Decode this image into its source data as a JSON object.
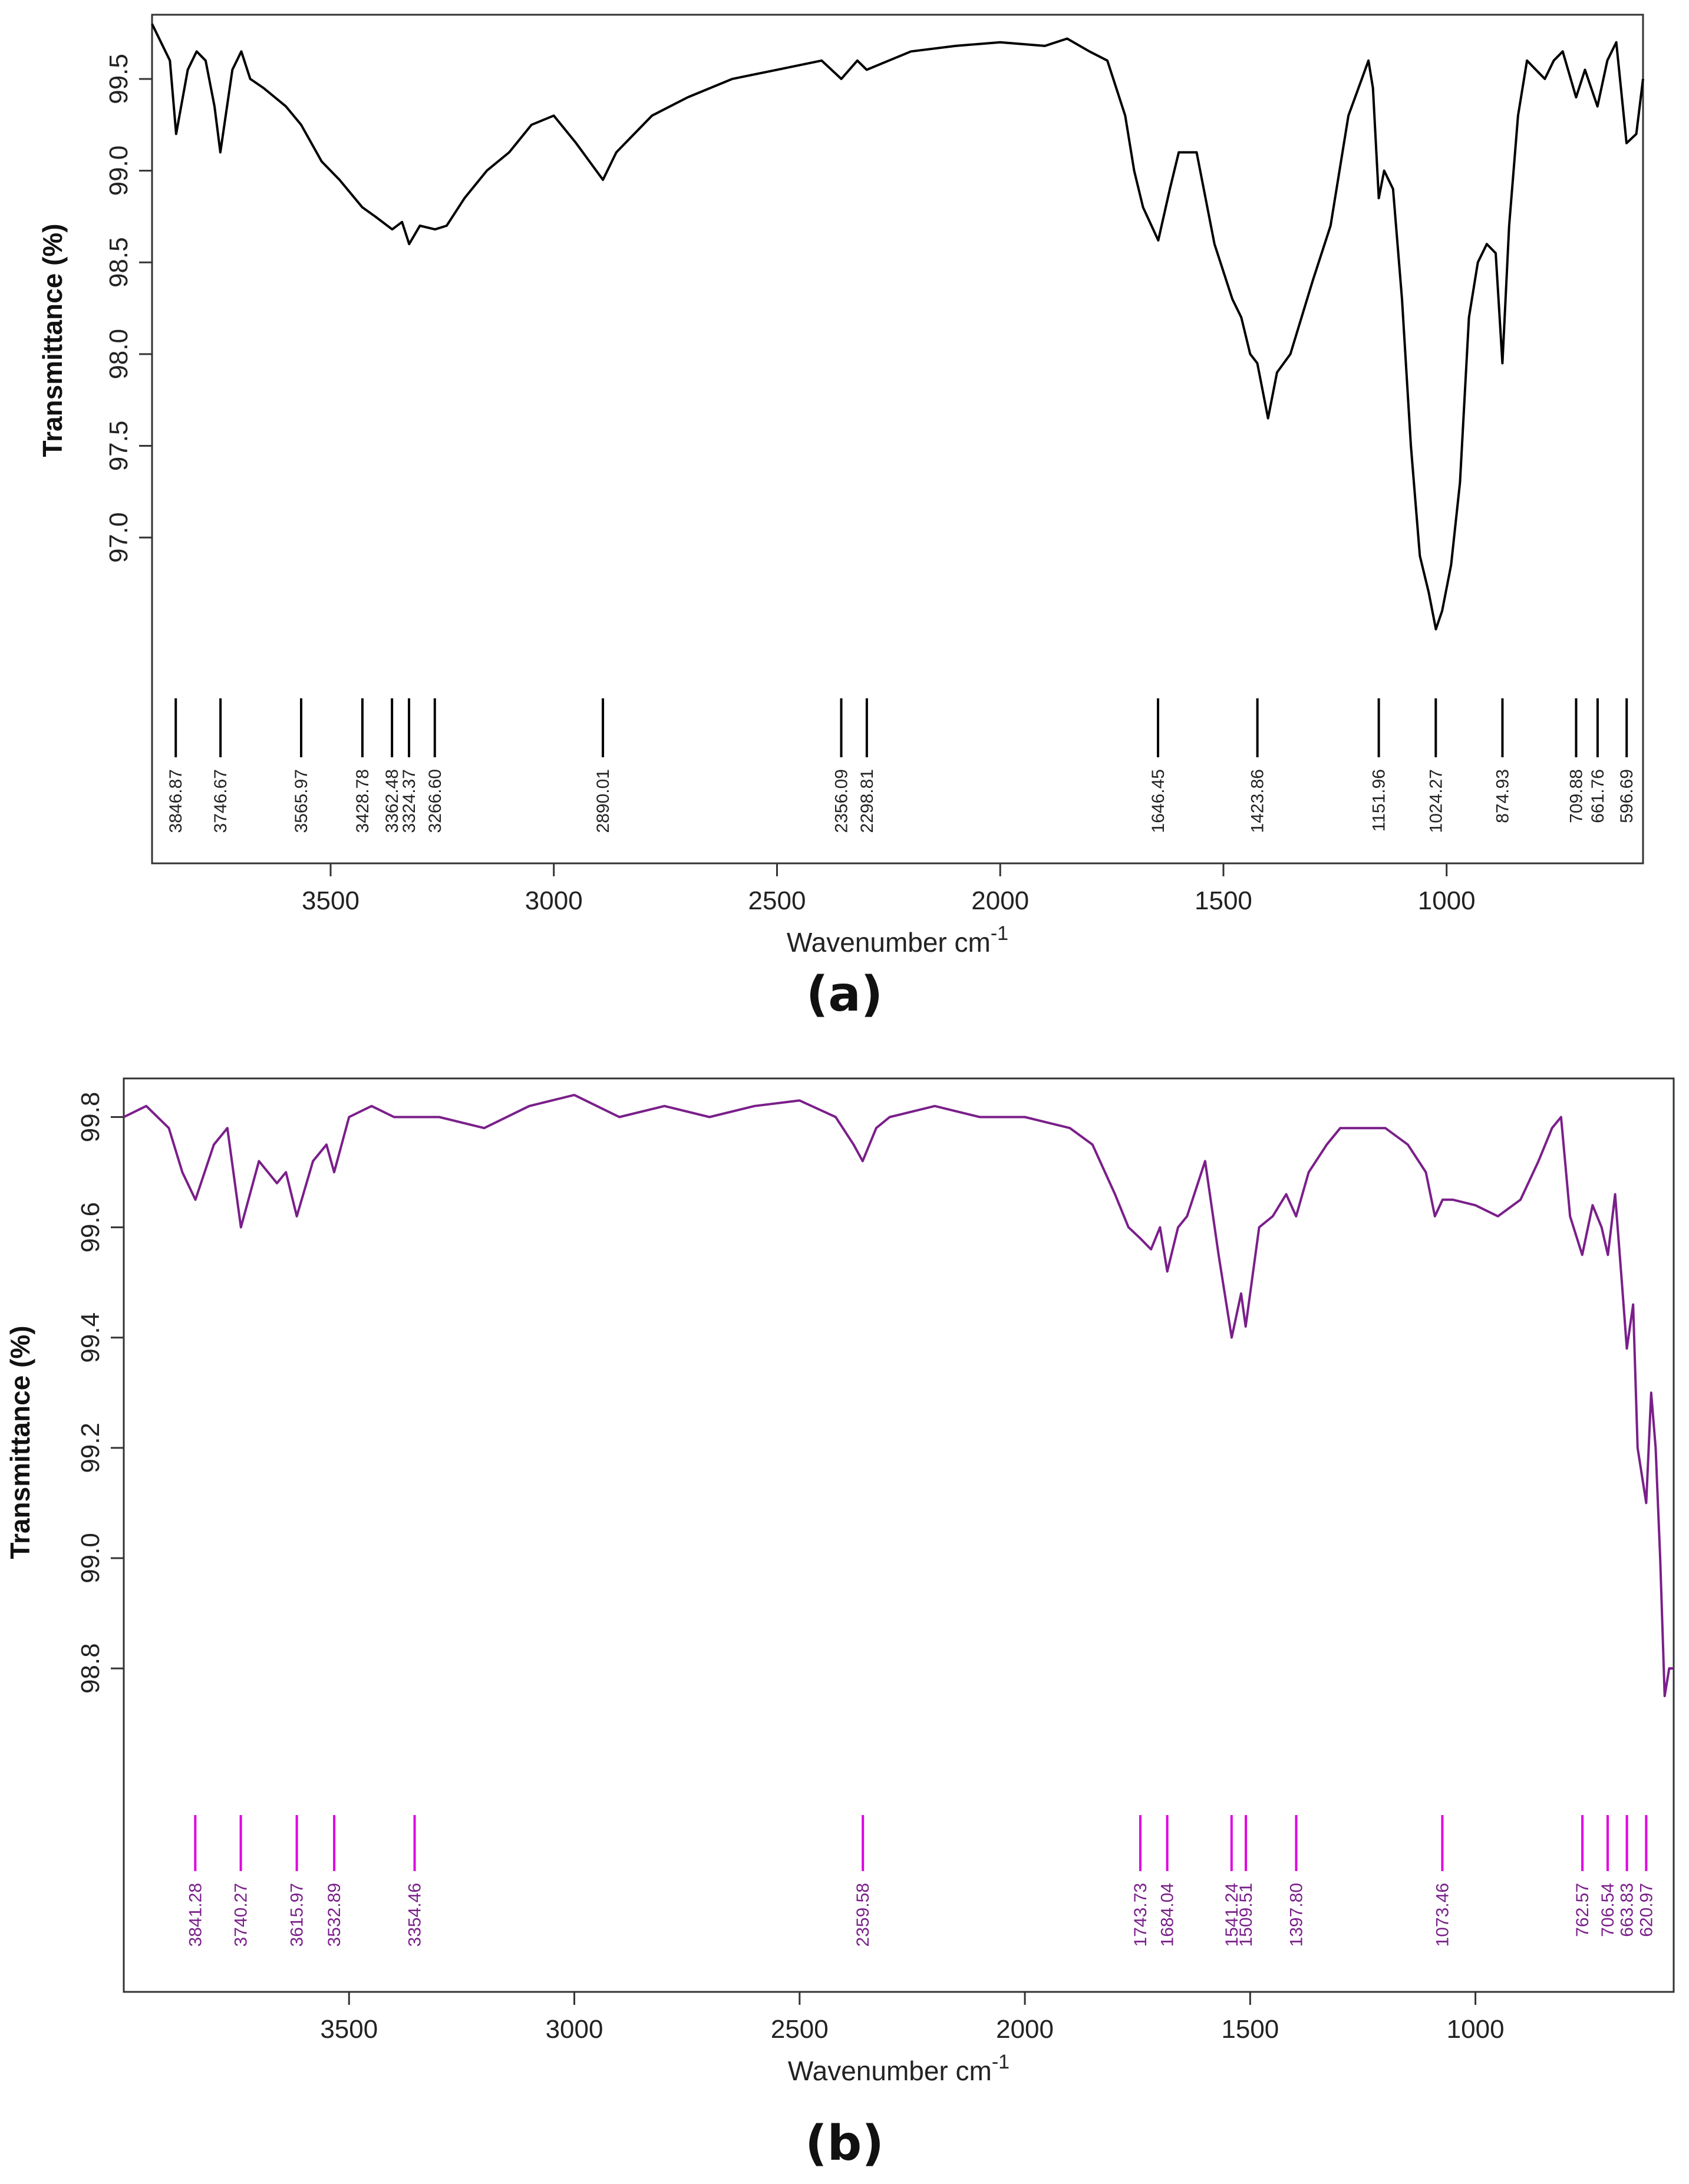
{
  "panels": [
    {
      "label": "(a)",
      "color": "#000000",
      "peak_color": "#000000",
      "label_color": "#222222",
      "chart_data": {
        "type": "line",
        "title": "",
        "xlabel": "Wavenumber cm",
        "xlabel_sup": "-1",
        "ylabel": "Transmittance (%)",
        "xlim": [
          3900,
          560
        ],
        "ylim": [
          96.3,
          99.85
        ],
        "xticks": [
          3500,
          3000,
          2500,
          2000,
          1500,
          1000
        ],
        "yticks": [
          "97.0",
          "97.5",
          "98.0",
          "98.5",
          "99.0",
          "99.5"
        ],
        "series": [
          {
            "x": [
              3900,
              3860,
              3846,
              3820,
              3800,
              3780,
              3760,
              3747,
              3720,
              3700,
              3680,
              3650,
              3600,
              3566,
              3520,
              3480,
              3429,
              3400,
              3362,
              3340,
              3324,
              3300,
              3266,
              3240,
              3200,
              3150,
              3100,
              3050,
              3000,
              2950,
              2920,
              2890,
              2860,
              2820,
              2780,
              2700,
              2600,
              2500,
              2400,
              2356,
              2320,
              2299,
              2200,
              2100,
              2000,
              1900,
              1850,
              1800,
              1760,
              1720,
              1700,
              1680,
              1646,
              1620,
              1600,
              1560,
              1520,
              1480,
              1460,
              1440,
              1424,
              1400,
              1380,
              1350,
              1300,
              1260,
              1220,
              1190,
              1175,
              1165,
              1152,
              1140,
              1120,
              1100,
              1080,
              1060,
              1040,
              1024,
              1010,
              990,
              970,
              950,
              930,
              910,
              890,
              875,
              860,
              840,
              820,
              800,
              780,
              760,
              740,
              710,
              690,
              662,
              640,
              620,
              597,
              575,
              560
            ],
            "y": [
              99.8,
              99.6,
              99.2,
              99.55,
              99.65,
              99.6,
              99.35,
              99.1,
              99.55,
              99.65,
              99.5,
              99.45,
              99.35,
              99.25,
              99.05,
              98.95,
              98.8,
              98.75,
              98.68,
              98.72,
              98.6,
              98.7,
              98.68,
              98.7,
              98.85,
              99.0,
              99.1,
              99.25,
              99.3,
              99.15,
              99.05,
              98.95,
              99.1,
              99.2,
              99.3,
              99.4,
              99.5,
              99.55,
              99.6,
              99.5,
              99.6,
              99.55,
              99.65,
              99.68,
              99.7,
              99.68,
              99.72,
              99.65,
              99.6,
              99.3,
              99.0,
              98.8,
              98.62,
              98.9,
              99.1,
              99.1,
              98.6,
              98.3,
              98.2,
              98.0,
              97.95,
              97.65,
              97.9,
              98.0,
              98.4,
              98.7,
              99.3,
              99.5,
              99.6,
              99.45,
              98.85,
              99.0,
              98.9,
              98.3,
              97.5,
              96.9,
              96.7,
              96.5,
              96.6,
              96.85,
              97.3,
              98.2,
              98.5,
              98.6,
              98.55,
              97.95,
              98.7,
              99.3,
              99.6,
              99.55,
              99.5,
              99.6,
              99.65,
              99.4,
              99.55,
              99.35,
              99.6,
              99.7,
              99.15,
              99.2,
              99.5
            ]
          }
        ],
        "peaks": [
          "3846.87",
          "3746.67",
          "3565.97",
          "3428.78",
          "3362.48",
          "3324.37",
          "3266.60",
          "2890.01",
          "2356.09",
          "2298.81",
          "1646.45",
          "1423.86",
          "1151.96",
          "1024.27",
          "874.93",
          "709.88",
          "661.76",
          "596.69"
        ],
        "peak_x": [
          3846.87,
          3746.67,
          3565.97,
          3428.78,
          3362.48,
          3324.37,
          3266.6,
          2890.01,
          2356.09,
          2298.81,
          1646.45,
          1423.86,
          1151.96,
          1024.27,
          874.93,
          709.88,
          661.76,
          596.69
        ]
      }
    },
    {
      "label": "(b)",
      "color": "#7a1f8a",
      "peak_color": "#e000e0",
      "label_color": "#7a1f8a",
      "chart_data": {
        "type": "line",
        "title": "",
        "xlabel": "Wavenumber cm",
        "xlabel_sup": "-1",
        "ylabel": "Transmittance (%)",
        "xlim": [
          4000,
          560
        ],
        "ylim": [
          98.55,
          99.87
        ],
        "xticks": [
          3500,
          3000,
          2500,
          2000,
          1500,
          1000
        ],
        "yticks": [
          "98.8",
          "99.0",
          "99.2",
          "99.4",
          "99.6",
          "99.8"
        ],
        "series": [
          {
            "x": [
              4000,
              3950,
              3900,
              3870,
              3841,
              3800,
              3770,
              3740,
              3700,
              3660,
              3640,
              3616,
              3580,
              3550,
              3533,
              3500,
              3450,
              3400,
              3354,
              3300,
              3200,
              3100,
              3000,
              2900,
              2800,
              2700,
              2600,
              2500,
              2420,
              2380,
              2360,
              2330,
              2300,
              2200,
              2100,
              2000,
              1900,
              1850,
              1800,
              1770,
              1744,
              1720,
              1700,
              1684,
              1660,
              1640,
              1600,
              1570,
              1541,
              1520,
              1510,
              1480,
              1450,
              1420,
              1398,
              1370,
              1330,
              1300,
              1250,
              1200,
              1150,
              1110,
              1090,
              1073,
              1050,
              1000,
              950,
              900,
              860,
              830,
              810,
              790,
              763,
              740,
              720,
              706,
              690,
              675,
              664,
              650,
              640,
              621,
              610,
              600,
              590,
              580,
              570,
              560
            ],
            "y": [
              99.8,
              99.82,
              99.78,
              99.7,
              99.65,
              99.75,
              99.78,
              99.6,
              99.72,
              99.68,
              99.7,
              99.62,
              99.72,
              99.75,
              99.7,
              99.8,
              99.82,
              99.8,
              99.8,
              99.8,
              99.78,
              99.82,
              99.84,
              99.8,
              99.82,
              99.8,
              99.82,
              99.83,
              99.8,
              99.75,
              99.72,
              99.78,
              99.8,
              99.82,
              99.8,
              99.8,
              99.78,
              99.75,
              99.66,
              99.6,
              99.58,
              99.56,
              99.6,
              99.52,
              99.6,
              99.62,
              99.72,
              99.55,
              99.4,
              99.48,
              99.42,
              99.6,
              99.62,
              99.66,
              99.62,
              99.7,
              99.75,
              99.78,
              99.78,
              99.78,
              99.75,
              99.7,
              99.62,
              99.65,
              99.65,
              99.64,
              99.62,
              99.65,
              99.72,
              99.78,
              99.8,
              99.62,
              99.55,
              99.64,
              99.6,
              99.55,
              99.66,
              99.5,
              99.38,
              99.46,
              99.2,
              99.1,
              99.3,
              99.2,
              99.0,
              98.75,
              98.8,
              98.8
            ]
          }
        ],
        "peaks": [
          "3841.28",
          "3740.27",
          "3615.97",
          "3532.89",
          "3354.46",
          "2359.58",
          "1743.73",
          "1684.04",
          "1541.24",
          "1509.51",
          "1397.80",
          "1073.46",
          "762.57",
          "706.54",
          "663.83",
          "620.97"
        ],
        "peak_x": [
          3841.28,
          3740.27,
          3615.97,
          3532.89,
          3354.46,
          2359.58,
          1743.73,
          1684.04,
          1541.24,
          1509.51,
          1397.8,
          1073.46,
          762.57,
          706.54,
          663.83,
          620.97
        ]
      }
    }
  ]
}
